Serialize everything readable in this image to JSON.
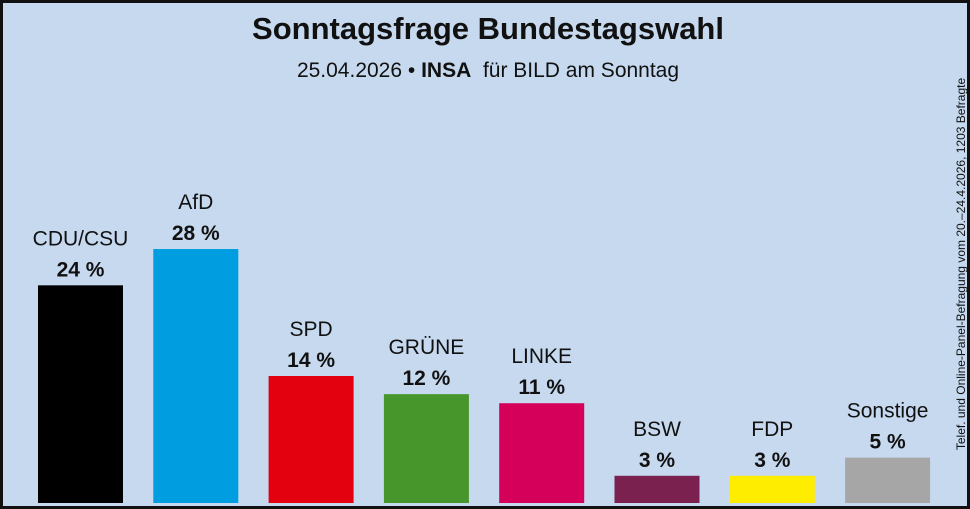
{
  "header": {
    "title": "Sonntagsfrage Bundestagswahl",
    "subtitle_date": "25.04.2026 •",
    "subtitle_institute": "INSA",
    "subtitle_client": "für BILD am Sonntag"
  },
  "source_note": "Telef. und Online-Panel-Befragung vom 20.–24.4.2026, 1203 Befragte",
  "chart_data": {
    "type": "bar",
    "title": "Sonntagsfrage Bundestagswahl",
    "subtitle": "25.04.2026 • INSA für BILD am Sonntag",
    "categories": [
      "CDU/CSU",
      "AfD",
      "SPD",
      "GRÜNE",
      "LINKE",
      "BSW",
      "FDP",
      "Sonstige"
    ],
    "values": [
      24,
      28,
      14,
      12,
      11,
      3,
      3,
      5
    ],
    "value_labels": [
      "24 %",
      "28 %",
      "14 %",
      "12 %",
      "11 %",
      "3 %",
      "3 %",
      "5 %"
    ],
    "colors": [
      "#000000",
      "#009ee0",
      "#e3000f",
      "#46962b",
      "#d4005a",
      "#7b2150",
      "#ffed00",
      "#a6a6a6"
    ],
    "unit": "%",
    "grid": false,
    "legend": "none"
  }
}
